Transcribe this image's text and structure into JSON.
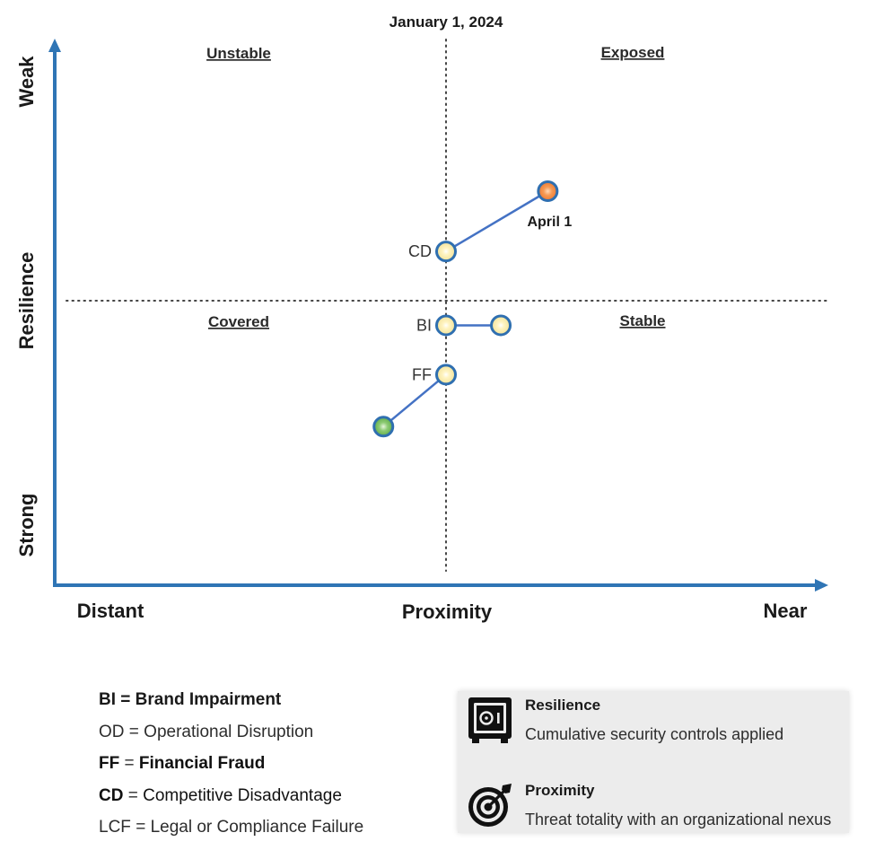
{
  "chart_data": {
    "type": "scatter",
    "title": "January 1, 2024",
    "xlabel": "Proximity",
    "ylabel": "Resilience",
    "x_ends": {
      "left": "Distant",
      "right": "Near"
    },
    "y_ends": {
      "top": "Weak",
      "bottom": "Strong"
    },
    "xlim": [
      0,
      100
    ],
    "ylim": [
      0,
      100
    ],
    "grid": false,
    "quadrants": {
      "top_left": "Unstable",
      "top_right": "Exposed",
      "bottom_left": "Covered",
      "bottom_right": "Stable"
    },
    "points": [
      {
        "id": "cd-jan",
        "label": "CD",
        "x": 50,
        "y": 59,
        "color": "#f6e7a4"
      },
      {
        "id": "cd-apr",
        "label": "April 1",
        "x": 63,
        "y": 70,
        "color": "#f08a3c"
      },
      {
        "id": "bi-jan",
        "label": "BI",
        "x": 50,
        "y": 45.5,
        "color": "#f6e7a4"
      },
      {
        "id": "bi-next",
        "label": "",
        "x": 57,
        "y": 45.5,
        "color": "#f6e7a4"
      },
      {
        "id": "ff-jan",
        "label": "FF",
        "x": 50,
        "y": 36.5,
        "color": "#f6e7a4"
      },
      {
        "id": "ff-next",
        "label": "",
        "x": 42,
        "y": 27,
        "color": "#6fb856"
      }
    ],
    "links": [
      [
        "cd-jan",
        "cd-apr"
      ],
      [
        "bi-jan",
        "bi-next"
      ],
      [
        "ff-jan",
        "ff-next"
      ]
    ],
    "axis_color": "#2f75b5",
    "marker_stroke": "#2f6fb0",
    "line_color": "#4472c4"
  },
  "legend": [
    {
      "abbr": "BI",
      "eq": "=",
      "full": "Brand Impairment"
    },
    {
      "abbr": "OD",
      "eq": "=",
      "full": "Operational Disruption"
    },
    {
      "abbr": "FF",
      "eq": "=",
      "full": "Financial Fraud"
    },
    {
      "abbr": "CD",
      "eq": "=",
      "full": "Competitive Disadvantage"
    },
    {
      "abbr": "LCF",
      "eq": "=",
      "full": "Legal or Compliance Failure"
    }
  ],
  "info": {
    "resilience": {
      "title": "Resilience",
      "desc": "Cumulative security controls applied",
      "icon": "safe-icon"
    },
    "proximity": {
      "title": "Proximity",
      "desc": "Threat totality with an organizational nexus",
      "icon": "target-icon"
    }
  }
}
